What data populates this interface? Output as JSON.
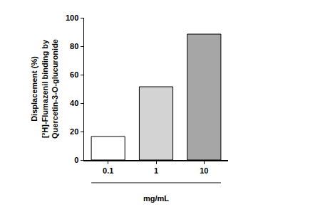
{
  "chart_data": {
    "type": "bar",
    "categories": [
      "0.1",
      "1",
      "10"
    ],
    "values": [
      16.5,
      51.5,
      88.5
    ],
    "colors": [
      "#ffffff",
      "#d3d3d3",
      "#a6a6a6"
    ],
    "x_label": "mg/mL",
    "y_label": "Displacement (%)\n[³H]-Flumazenil binding by\nQuercetin-3-O-glucuronide",
    "ylim": [
      0,
      100
    ],
    "yticks": [
      0,
      20,
      40,
      60,
      80,
      100
    ],
    "grid": false
  }
}
